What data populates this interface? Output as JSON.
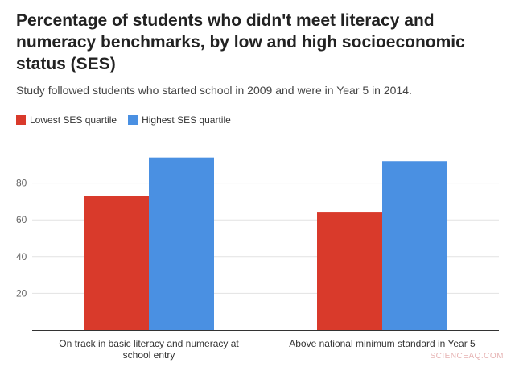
{
  "chart_data": {
    "type": "bar",
    "title": "Percentage of students who didn't meet literacy and numeracy benchmarks, by low and high socioeconomic status (SES)",
    "subtitle": "Study followed students who started school in 2009 and were in Year 5 in 2014.",
    "categories": [
      "On track in basic literacy and numeracy at school entry",
      "Above national minimum standard in Year 5"
    ],
    "series": [
      {
        "name": "Lowest SES quartile",
        "color": "#d93a2b",
        "values": [
          73,
          64
        ]
      },
      {
        "name": "Highest SES quartile",
        "color": "#4a90e2",
        "values": [
          94,
          92
        ]
      }
    ],
    "yticks": [
      20,
      40,
      60,
      80
    ],
    "ylim": [
      0,
      100
    ],
    "grid": true,
    "legend": "top-left"
  },
  "watermark": "SCIENCEAQ.COM"
}
